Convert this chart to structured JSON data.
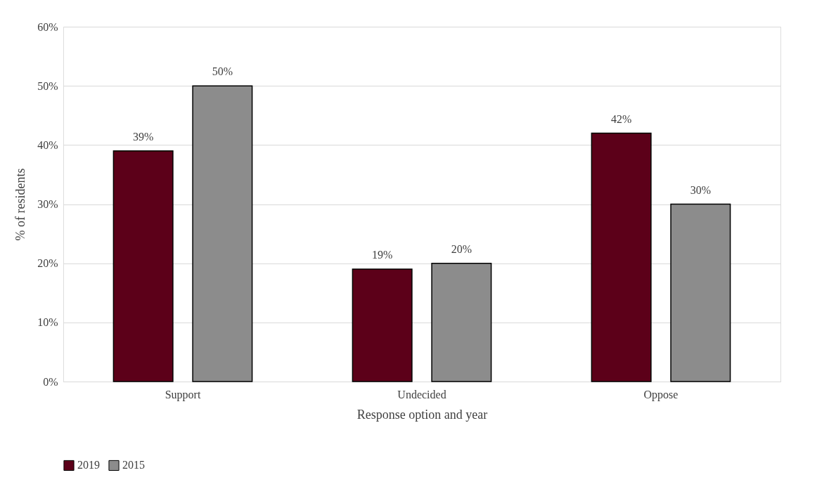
{
  "chart_data": {
    "type": "bar",
    "xlabel": "Response option and year",
    "ylabel": "% of residents",
    "categories": [
      "Support",
      "Undecided",
      "Oppose"
    ],
    "series": [
      {
        "name": "2019",
        "color": "#5c0019",
        "values": [
          39,
          19,
          42
        ],
        "value_labels": [
          "39%",
          "19%",
          "42%"
        ]
      },
      {
        "name": "2015",
        "color": "#8c8c8c",
        "values": [
          50,
          20,
          30
        ],
        "value_labels": [
          "50%",
          "20%",
          "30%"
        ]
      }
    ],
    "ylim": [
      0,
      60
    ],
    "yticks": [
      {
        "value": 0,
        "label": "0%"
      },
      {
        "value": 10,
        "label": "10%"
      },
      {
        "value": 20,
        "label": "20%"
      },
      {
        "value": 30,
        "label": "30%"
      },
      {
        "value": 40,
        "label": "40%"
      },
      {
        "value": 50,
        "label": "50%"
      },
      {
        "value": 60,
        "label": "60%"
      }
    ],
    "grid": "y",
    "legend": "bottom"
  }
}
